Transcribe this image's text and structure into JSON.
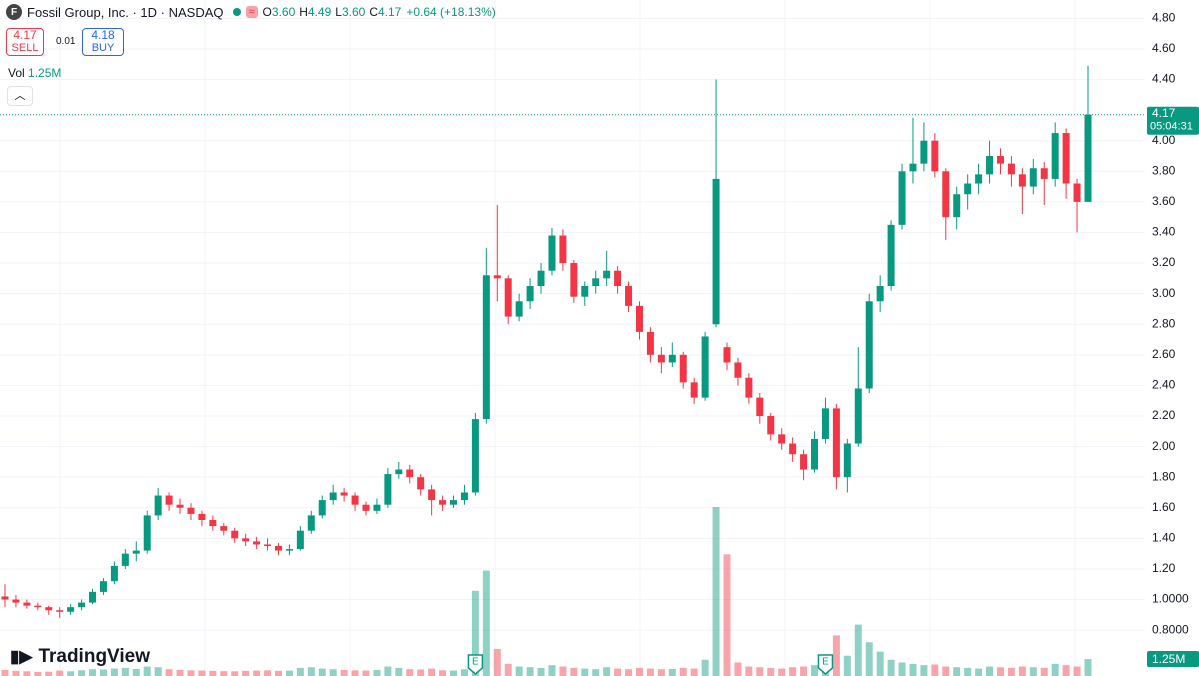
{
  "header": {
    "icon": "F",
    "title": "Fossil Group, Inc. · 1D · NASDAQ",
    "ohlc": [
      {
        "label": "O",
        "value": "3.60"
      },
      {
        "label": "H",
        "value": "4.49"
      },
      {
        "label": "L",
        "value": "3.60"
      },
      {
        "label": "C",
        "value": "4.17"
      }
    ],
    "change": "+0.64 (+18.13%)",
    "sell_price": "4.17",
    "sell_label": "SELL",
    "spread": "0.01",
    "buy_price": "4.18",
    "buy_label": "BUY",
    "vol_label": "Vol",
    "vol_value": "1.25M",
    "logo": "TradingView"
  },
  "chart_data": {
    "type": "candlestick",
    "up_color": "#089981",
    "down_color": "#f23645",
    "ylim": [
      0.5,
      4.92
    ],
    "yticks": [
      {
        "value": 0.8,
        "label": "0.8000"
      },
      {
        "value": 1.0,
        "label": "1.0000"
      },
      {
        "value": 1.2,
        "label": "1.20"
      },
      {
        "value": 1.4,
        "label": "1.40"
      },
      {
        "value": 1.6,
        "label": "1.60"
      },
      {
        "value": 1.8,
        "label": "1.80"
      },
      {
        "value": 2.0,
        "label": "2.00"
      },
      {
        "value": 2.2,
        "label": "2.20"
      },
      {
        "value": 2.4,
        "label": "2.40"
      },
      {
        "value": 2.6,
        "label": "2.60"
      },
      {
        "value": 2.8,
        "label": "2.80"
      },
      {
        "value": 3.0,
        "label": "3.00"
      },
      {
        "value": 3.2,
        "label": "3.20"
      },
      {
        "value": 3.4,
        "label": "3.40"
      },
      {
        "value": 3.6,
        "label": "3.60"
      },
      {
        "value": 3.8,
        "label": "3.80"
      },
      {
        "value": 4.0,
        "label": "4.00"
      },
      {
        "value": 4.4,
        "label": "4.40"
      },
      {
        "value": 4.6,
        "label": "4.60"
      },
      {
        "value": 4.8,
        "label": "4.80"
      }
    ],
    "grid": true,
    "ohlc": [
      [
        1.02,
        1.1,
        0.95,
        1.0
      ],
      [
        1.0,
        1.03,
        0.95,
        0.98
      ],
      [
        0.98,
        1.0,
        0.94,
        0.96
      ],
      [
        0.96,
        0.98,
        0.93,
        0.95
      ],
      [
        0.95,
        0.96,
        0.9,
        0.93
      ],
      [
        0.93,
        0.95,
        0.88,
        0.92
      ],
      [
        0.92,
        0.97,
        0.9,
        0.95
      ],
      [
        0.95,
        1.0,
        0.93,
        0.98
      ],
      [
        0.98,
        1.07,
        0.97,
        1.05
      ],
      [
        1.05,
        1.14,
        1.03,
        1.12
      ],
      [
        1.12,
        1.25,
        1.1,
        1.22
      ],
      [
        1.22,
        1.33,
        1.2,
        1.3
      ],
      [
        1.3,
        1.38,
        1.25,
        1.32
      ],
      [
        1.32,
        1.58,
        1.3,
        1.55
      ],
      [
        1.55,
        1.73,
        1.52,
        1.68
      ],
      [
        1.68,
        1.7,
        1.58,
        1.62
      ],
      [
        1.62,
        1.66,
        1.56,
        1.6
      ],
      [
        1.6,
        1.63,
        1.52,
        1.56
      ],
      [
        1.56,
        1.58,
        1.48,
        1.52
      ],
      [
        1.52,
        1.55,
        1.45,
        1.48
      ],
      [
        1.48,
        1.5,
        1.42,
        1.45
      ],
      [
        1.45,
        1.47,
        1.37,
        1.4
      ],
      [
        1.4,
        1.43,
        1.35,
        1.38
      ],
      [
        1.38,
        1.41,
        1.33,
        1.36
      ],
      [
        1.36,
        1.4,
        1.32,
        1.35
      ],
      [
        1.35,
        1.37,
        1.29,
        1.32
      ],
      [
        1.32,
        1.36,
        1.29,
        1.33
      ],
      [
        1.33,
        1.48,
        1.32,
        1.45
      ],
      [
        1.45,
        1.58,
        1.43,
        1.55
      ],
      [
        1.55,
        1.68,
        1.53,
        1.65
      ],
      [
        1.65,
        1.75,
        1.62,
        1.7
      ],
      [
        1.7,
        1.73,
        1.64,
        1.68
      ],
      [
        1.68,
        1.7,
        1.58,
        1.62
      ],
      [
        1.62,
        1.64,
        1.55,
        1.58
      ],
      [
        1.58,
        1.66,
        1.56,
        1.62
      ],
      [
        1.62,
        1.86,
        1.6,
        1.82
      ],
      [
        1.82,
        1.9,
        1.79,
        1.85
      ],
      [
        1.85,
        1.88,
        1.76,
        1.8
      ],
      [
        1.8,
        1.82,
        1.68,
        1.72
      ],
      [
        1.72,
        1.75,
        1.55,
        1.65
      ],
      [
        1.65,
        1.68,
        1.58,
        1.62
      ],
      [
        1.62,
        1.68,
        1.6,
        1.65
      ],
      [
        1.65,
        1.75,
        1.62,
        1.7
      ],
      [
        1.7,
        2.22,
        1.68,
        2.18
      ],
      [
        2.18,
        3.3,
        2.15,
        3.12
      ],
      [
        3.12,
        3.58,
        2.95,
        3.1
      ],
      [
        3.1,
        3.12,
        2.8,
        2.85
      ],
      [
        2.85,
        3.0,
        2.82,
        2.95
      ],
      [
        2.95,
        3.1,
        2.9,
        3.05
      ],
      [
        3.05,
        3.2,
        3.0,
        3.15
      ],
      [
        3.15,
        3.43,
        3.12,
        3.38
      ],
      [
        3.38,
        3.42,
        3.15,
        3.2
      ],
      [
        3.2,
        3.22,
        2.94,
        2.98
      ],
      [
        2.98,
        3.08,
        2.92,
        3.05
      ],
      [
        3.05,
        3.15,
        3.0,
        3.1
      ],
      [
        3.1,
        3.28,
        3.05,
        3.15
      ],
      [
        3.15,
        3.18,
        3.0,
        3.05
      ],
      [
        3.05,
        3.08,
        2.88,
        2.92
      ],
      [
        2.92,
        2.95,
        2.7,
        2.75
      ],
      [
        2.75,
        2.78,
        2.55,
        2.6
      ],
      [
        2.6,
        2.65,
        2.48,
        2.55
      ],
      [
        2.55,
        2.68,
        2.52,
        2.6
      ],
      [
        2.6,
        2.62,
        2.38,
        2.42
      ],
      [
        2.42,
        2.45,
        2.28,
        2.32
      ],
      [
        2.32,
        2.75,
        2.3,
        2.72
      ],
      [
        2.8,
        4.4,
        2.78,
        3.75
      ],
      [
        2.65,
        2.68,
        2.5,
        2.55
      ],
      [
        2.55,
        2.58,
        2.4,
        2.45
      ],
      [
        2.45,
        2.48,
        2.28,
        2.32
      ],
      [
        2.32,
        2.35,
        2.15,
        2.2
      ],
      [
        2.2,
        2.22,
        2.04,
        2.08
      ],
      [
        2.08,
        2.12,
        1.98,
        2.02
      ],
      [
        2.02,
        2.06,
        1.9,
        1.95
      ],
      [
        1.95,
        1.98,
        1.78,
        1.85
      ],
      [
        1.85,
        2.1,
        1.83,
        2.05
      ],
      [
        2.05,
        2.32,
        2.02,
        2.25
      ],
      [
        2.25,
        2.28,
        1.72,
        1.8
      ],
      [
        1.8,
        2.05,
        1.7,
        2.02
      ],
      [
        2.02,
        2.65,
        2.0,
        2.38
      ],
      [
        2.38,
        3.0,
        2.35,
        2.95
      ],
      [
        2.95,
        3.12,
        2.88,
        3.05
      ],
      [
        3.05,
        3.48,
        3.02,
        3.45
      ],
      [
        3.45,
        3.85,
        3.42,
        3.8
      ],
      [
        3.8,
        4.15,
        3.72,
        3.85
      ],
      [
        3.85,
        4.12,
        3.8,
        4.0
      ],
      [
        4.0,
        4.05,
        3.76,
        3.8
      ],
      [
        3.8,
        3.82,
        3.35,
        3.5
      ],
      [
        3.5,
        3.7,
        3.42,
        3.65
      ],
      [
        3.65,
        3.78,
        3.55,
        3.72
      ],
      [
        3.72,
        3.85,
        3.65,
        3.78
      ],
      [
        3.78,
        4.0,
        3.72,
        3.9
      ],
      [
        3.9,
        3.95,
        3.78,
        3.85
      ],
      [
        3.85,
        3.9,
        3.7,
        3.78
      ],
      [
        3.78,
        3.82,
        3.52,
        3.7
      ],
      [
        3.7,
        3.88,
        3.65,
        3.82
      ],
      [
        3.82,
        3.86,
        3.58,
        3.75
      ],
      [
        3.75,
        4.12,
        3.7,
        4.05
      ],
      [
        4.05,
        4.08,
        3.62,
        3.72
      ],
      [
        3.72,
        3.75,
        3.4,
        3.6
      ],
      [
        3.6,
        4.49,
        3.6,
        4.17
      ]
    ],
    "volume": [
      450000,
      380000,
      350000,
      300000,
      320000,
      400000,
      350000,
      420000,
      500000,
      480000,
      550000,
      600000,
      520000,
      700000,
      650000,
      500000,
      450000,
      420000,
      400000,
      380000,
      360000,
      350000,
      380000,
      400000,
      420000,
      380000,
      400000,
      600000,
      650000,
      550000,
      500000,
      450000,
      420000,
      400000,
      450000,
      700000,
      600000,
      500000,
      480000,
      550000,
      420000,
      400000,
      500000,
      6300000,
      7800000,
      2000000,
      900000,
      700000,
      650000,
      600000,
      800000,
      700000,
      600000,
      550000,
      500000,
      650000,
      550000,
      500000,
      600000,
      550000,
      500000,
      520000,
      600000,
      550000,
      1200000,
      12500000,
      9000000,
      1000000,
      700000,
      650000,
      600000,
      550000,
      650000,
      700000,
      800000,
      1500000,
      3000000,
      1500000,
      3800000,
      2500000,
      1800000,
      1200000,
      1000000,
      900000,
      800000,
      850000,
      700000,
      650000,
      600000,
      550000,
      700000,
      650000,
      600000,
      700000,
      650000,
      600000,
      900000,
      800000,
      700000,
      1250000
    ],
    "volume_lim": [
      0,
      50000000
    ],
    "volume_label": "1.25M",
    "last_price": 4.17,
    "last_price_label": "4.17",
    "countdown": "05:04:31",
    "earnings": [
      {
        "label": "E",
        "index": 43
      },
      {
        "label": "E",
        "index": 75
      }
    ]
  }
}
